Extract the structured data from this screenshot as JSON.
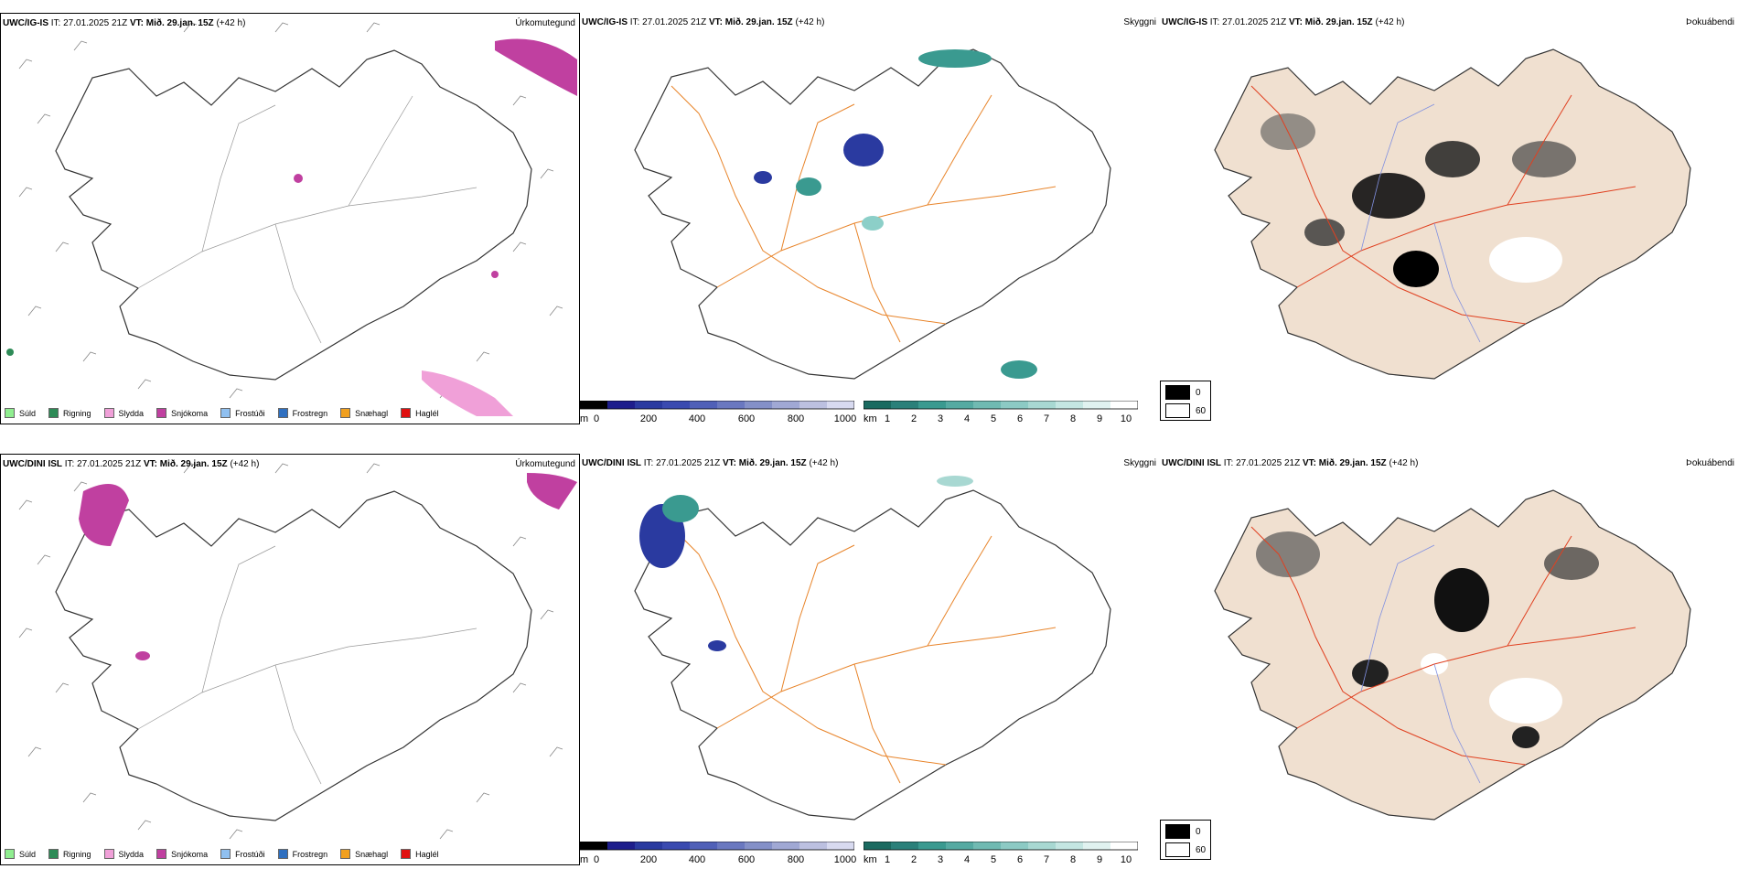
{
  "rows": [
    {
      "model": "UWC/IG-IS",
      "it": "IT: 27.01.2025 21Z",
      "vt_label": "VT:",
      "vt": "Mið. 29.jan. 15Z",
      "lead": "(+42 h)"
    },
    {
      "model": "UWC/DINI ISL",
      "it": "IT: 27.01.2025 21Z",
      "vt_label": "VT:",
      "vt": "Mið. 29.jan. 15Z",
      "lead": "(+42 h)"
    }
  ],
  "titles": {
    "precip_type": "Úrkomutegund",
    "visibility": "Skyggni",
    "fog": "Þokuábendi"
  },
  "precip_legend": [
    {
      "label": "Súld",
      "color": "#90ee90"
    },
    {
      "label": "Rigning",
      "color": "#2e8b57"
    },
    {
      "label": "Slydda",
      "color": "#f0a0d8"
    },
    {
      "label": "Snjókoma",
      "color": "#c040a0"
    },
    {
      "label": "Frostúði",
      "color": "#90c0f0"
    },
    {
      "label": "Frostregn",
      "color": "#3070c0"
    },
    {
      "label": "Snæhagl",
      "color": "#f0a020"
    },
    {
      "label": "Haglél",
      "color": "#e01010"
    }
  ],
  "vis_colorbar_m": {
    "unit": "m",
    "ticks": [
      "0",
      "200",
      "400",
      "600",
      "800",
      "1000"
    ]
  },
  "vis_colorbar_km": {
    "unit": "km",
    "ticks": [
      "1",
      "2",
      "3",
      "4",
      "5",
      "6",
      "7",
      "8",
      "9",
      "10"
    ]
  },
  "fog_legend": {
    "high": "0",
    "low": "60"
  },
  "colors": {
    "snow": "#c040a0",
    "sleet": "#f0a0d8",
    "rain": "#2e8b57",
    "low_vis_blue": "#2a3aa0",
    "vis_teal": "#3a9a90",
    "roads_orange": "#e8842a",
    "roads_red": "#e04020",
    "fog_land": "#f0e0d0",
    "rivers": "#8090e0"
  }
}
